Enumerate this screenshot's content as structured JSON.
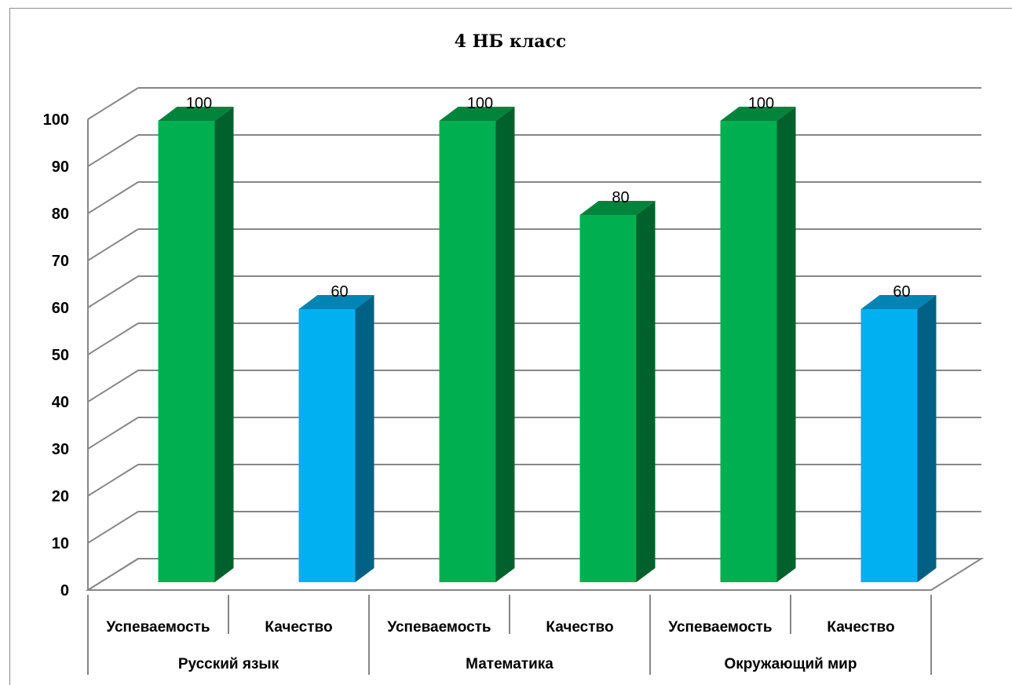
{
  "chart_data": {
    "type": "bar",
    "title": "4 НБ класс",
    "groups": [
      "Русский язык",
      "Математика",
      "Окружающий мир"
    ],
    "categories": [
      "Успеваемость",
      "Качество",
      "Успеваемость",
      "Качество",
      "Успеваемость",
      "Качество"
    ],
    "values": [
      100,
      60,
      100,
      80,
      100,
      60
    ],
    "bar_colors": [
      "#00b050",
      "#00b0f0",
      "#00b050",
      "#00b050",
      "#00b050",
      "#00b0f0"
    ],
    "series_colors": {
      "Успеваемость": "#00b050",
      "Качество": "#00b0f0"
    },
    "yticks": [
      "0",
      "10",
      "20",
      "30",
      "40",
      "50",
      "60",
      "70",
      "80",
      "90",
      "100"
    ],
    "ylim": [
      0,
      100
    ],
    "grid": true,
    "legend": "none",
    "three_d": true
  }
}
